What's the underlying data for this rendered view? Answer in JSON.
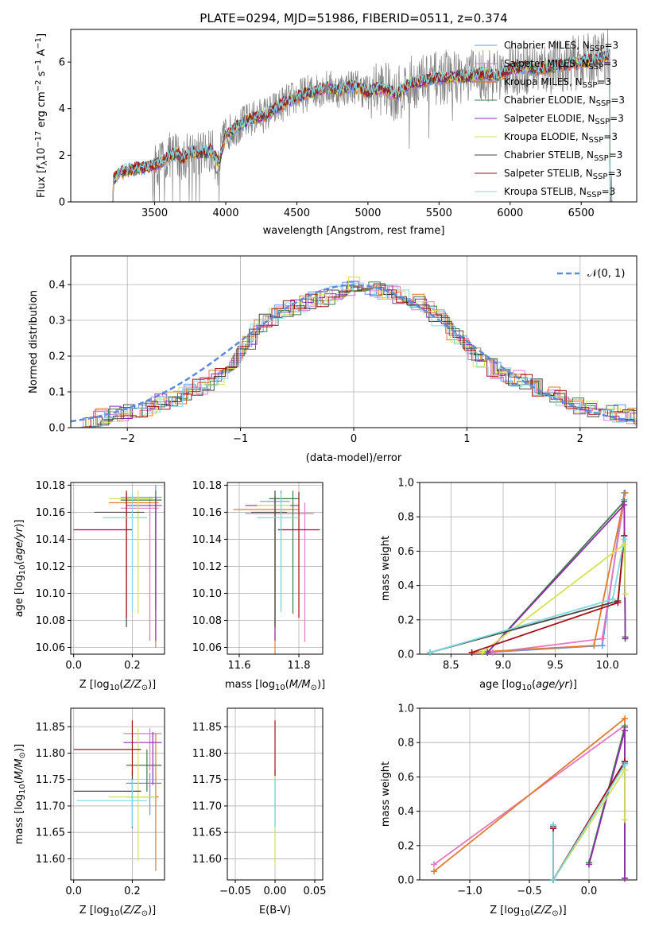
{
  "chart_data": [
    {
      "id": "spectrum",
      "type": "line",
      "title": "PLATE=0294, MJD=51986, FIBERID=0511, z=0.374",
      "xlabel": "wavelength [Angstrom, rest frame]",
      "ylabel": "Flux [f$_\\lambda$10$^{-17}$ erg cm$^{-2}$ s$^{-1}$ A$^{-1}$]",
      "ylabel_parts": {
        "pre": "Flux [",
        "f": "f",
        "lam": "λ",
        "ten": "10",
        "e1": "−17",
        "erg": " erg cm",
        "e2": "−2",
        "s": " s",
        "e3": "−1",
        "A": " A",
        "e4": "−1",
        "post": "]"
      },
      "xlim": [
        2910,
        6890
      ],
      "ylim": [
        0,
        7.4
      ],
      "xticks": [
        3500,
        4000,
        4500,
        5000,
        5500,
        6000,
        6500
      ],
      "yticks": [
        0,
        2,
        4,
        6
      ],
      "grid": false,
      "legend_position": "right",
      "data_series": {
        "name": "data",
        "color": "#808080"
      },
      "model_continuum": {
        "x": [
          3200,
          3250,
          3300,
          3350,
          3400,
          3450,
          3500,
          3550,
          3600,
          3650,
          3700,
          3750,
          3800,
          3850,
          3900,
          3950,
          4000,
          4100,
          4200,
          4300,
          4400,
          4500,
          4600,
          4700,
          4800,
          4900,
          5000,
          5100,
          5200,
          5300,
          5400,
          5500,
          5600,
          5700,
          5800,
          5900,
          6000,
          6100,
          6200,
          6300,
          6400,
          6500,
          6600,
          6700
        ],
        "y": [
          0.9,
          1.25,
          1.35,
          1.4,
          1.45,
          1.5,
          1.55,
          1.75,
          2.0,
          2.1,
          1.8,
          2.2,
          2.1,
          2.1,
          2.2,
          1.6,
          2.9,
          3.3,
          3.6,
          3.8,
          4.2,
          4.5,
          4.7,
          4.9,
          4.8,
          5.0,
          4.7,
          4.9,
          4.6,
          5.1,
          5.2,
          5.3,
          5.4,
          5.35,
          5.5,
          5.4,
          5.7,
          5.8,
          5.7,
          5.8,
          5.9,
          6.0,
          6.1,
          6.3
        ]
      },
      "series": [
        {
          "name": "Chabrier MILES, N$_{SSP}$=3",
          "label": "Chabrier MILES, N",
          "sub": "SSP",
          "tail": "=3",
          "color": "#6495ed",
          "lw": 1
        },
        {
          "name": "Salpeter MILES, N$_{SSP}$=3",
          "label": "Salpeter MILES, N",
          "sub": "SSP",
          "tail": "=3",
          "color": "#e377c2",
          "lw": 1
        },
        {
          "name": "Kroupa MILES, N$_{SSP}$=3",
          "label": "Kroupa MILES, N",
          "sub": "SSP",
          "tail": "=3",
          "color": "#e07b30",
          "lw": 1.5
        },
        {
          "name": "Chabrier ELODIE, N$_{SSP}$=3",
          "label": "Chabrier ELODIE, N",
          "sub": "SSP",
          "tail": "=3",
          "color": "#3a7d44",
          "lw": 1
        },
        {
          "name": "Salpeter ELODIE, N$_{SSP}$=3",
          "label": "Salpeter ELODIE, N",
          "sub": "SSP",
          "tail": "=3",
          "color": "#8e2fa8",
          "lw": 1
        },
        {
          "name": "Kroupa ELODIE, N$_{SSP}$=3",
          "label": "Kroupa ELODIE, N",
          "sub": "SSP",
          "tail": "=3",
          "color": "#d4e157",
          "lw": 1
        },
        {
          "name": "Chabrier STELIB, N$_{SSP}$=3",
          "label": "Chabrier STELIB, N",
          "sub": "SSP",
          "tail": "=3",
          "color": "#444444",
          "lw": 1
        },
        {
          "name": "Salpeter STELIB, N$_{SSP}$=3",
          "label": "Salpeter STELIB, N",
          "sub": "SSP",
          "tail": "=3",
          "color": "#a50f15",
          "lw": 1
        },
        {
          "name": "Kroupa STELIB, N$_{SSP}$=3",
          "label": "Kroupa STELIB, N",
          "sub": "SSP",
          "tail": "=3",
          "color": "#7fd8e0",
          "lw": 1
        }
      ]
    },
    {
      "id": "residuals",
      "type": "line",
      "xlabel": "(data-model)/error",
      "ylabel": "Normed distribution",
      "xlim": [
        -2.5,
        2.5
      ],
      "ylim": [
        0,
        0.48
      ],
      "xticks": [
        -2,
        -1,
        0,
        1,
        2
      ],
      "yticks": [
        0.0,
        0.1,
        0.2,
        0.3,
        0.4
      ],
      "grid": true,
      "legend_position": "top-right",
      "legend_label": "𝒩(0, 1)",
      "gaussian": {
        "mu": 0,
        "sigma": 1,
        "color": "#5b8bd9"
      },
      "hist_bin_width": 0.1,
      "hist_shape": {
        "x": [
          -2.5,
          -2.0,
          -1.5,
          -1.2,
          -1.0,
          -0.8,
          -0.6,
          -0.4,
          -0.2,
          0.0,
          0.2,
          0.4,
          0.6,
          0.8,
          1.0,
          1.2,
          1.5,
          2.0,
          2.5
        ],
        "y": [
          0.02,
          0.04,
          0.09,
          0.14,
          0.21,
          0.29,
          0.33,
          0.35,
          0.37,
          0.4,
          0.39,
          0.37,
          0.35,
          0.29,
          0.22,
          0.17,
          0.13,
          0.06,
          0.03
        ]
      }
    },
    {
      "id": "age_vs_Z",
      "type": "scatter",
      "xlabel": "Z [log$_{10}$(Z/Z$_\\odot$)]",
      "ylabel": "age  [log$_{10}$(age/yr)]",
      "xlim": [
        -0.01,
        0.31
      ],
      "ylim": [
        10.055,
        10.182
      ],
      "xticks": [
        0.0,
        0.2
      ],
      "yticks": [
        10.06,
        10.08,
        10.1,
        10.12,
        10.14,
        10.16,
        10.18
      ],
      "grid": true,
      "points": [
        {
          "s": 0,
          "x": 0.28,
          "y": 10.171,
          "xerr": [
            0.12,
            0.02
          ],
          "yerr": [
            0.08,
            0.009
          ]
        },
        {
          "s": 1,
          "x": 0.26,
          "y": 10.163,
          "xerr": [
            0.1,
            0.03
          ],
          "yerr": [
            0.098,
            0.008
          ]
        },
        {
          "s": 2,
          "x": 0.28,
          "y": 10.167,
          "xerr": [
            0.16,
            0.01
          ],
          "yerr": [
            0.107,
            0.005
          ]
        },
        {
          "s": 3,
          "x": 0.28,
          "y": 10.169,
          "xerr": [
            0.12,
            0.02
          ],
          "yerr": [
            0.082,
            0.007
          ]
        },
        {
          "s": 4,
          "x": 0.28,
          "y": 10.165,
          "xerr": [
            0.1,
            0.02
          ],
          "yerr": [
            0.1,
            0.006
          ]
        },
        {
          "s": 5,
          "x": 0.22,
          "y": 10.17,
          "xerr": [
            0.1,
            0.05
          ],
          "yerr": [
            0.085,
            0.006
          ]
        },
        {
          "s": 6,
          "x": 0.18,
          "y": 10.16,
          "xerr": [
            0.11,
            0.06
          ],
          "yerr": [
            0.085,
            0.016
          ]
        },
        {
          "s": 7,
          "x": 0.18,
          "y": 10.147,
          "xerr": [
            0.18,
            0.02
          ],
          "yerr": [
            0.065,
            0.028
          ]
        },
        {
          "s": 8,
          "x": 0.2,
          "y": 10.156,
          "xerr": [
            0.1,
            0.05
          ],
          "yerr": [
            0.07,
            0.018
          ]
        }
      ]
    },
    {
      "id": "age_vs_mass",
      "type": "scatter",
      "xlabel": "mass [log$_{10}$(M/M$_\\odot$)]",
      "ylabel": "",
      "xlim": [
        11.56,
        11.88
      ],
      "ylim": [
        10.055,
        10.182
      ],
      "xticks": [
        11.6,
        11.8
      ],
      "yticks": [
        10.06,
        10.08,
        10.1,
        10.12,
        10.14,
        10.16,
        10.18
      ],
      "grid": true,
      "points": [
        {
          "s": 0,
          "x": 11.74,
          "y": 10.168,
          "xerr": [
            0.07,
            0.03
          ],
          "yerr": [
            0.08,
            0.008
          ]
        },
        {
          "s": 1,
          "x": 11.82,
          "y": 10.159,
          "xerr": [
            0.2,
            0.03
          ],
          "yerr": [
            0.095,
            0.008
          ]
        },
        {
          "s": 2,
          "x": 11.72,
          "y": 10.162,
          "xerr": [
            0.14,
            0.08
          ],
          "yerr": [
            0.108,
            0.01
          ]
        },
        {
          "s": 3,
          "x": 11.78,
          "y": 10.17,
          "xerr": [
            0.08,
            0.02
          ],
          "yerr": [
            0.085,
            0.006
          ]
        },
        {
          "s": 4,
          "x": 11.72,
          "y": 10.165,
          "xerr": [
            0.1,
            0.08
          ],
          "yerr": [
            0.1,
            0.006
          ]
        },
        {
          "s": 5,
          "x": 11.72,
          "y": 10.165,
          "xerr": [
            0.06,
            0.05
          ],
          "yerr": [
            0.09,
            0.005
          ]
        },
        {
          "s": 6,
          "x": 11.72,
          "y": 10.16,
          "xerr": [
            0.08,
            0.04
          ],
          "yerr": [
            0.085,
            0.016
          ]
        },
        {
          "s": 7,
          "x": 11.8,
          "y": 10.147,
          "xerr": [
            0.07,
            0.07
          ],
          "yerr": [
            0.065,
            0.028
          ]
        },
        {
          "s": 8,
          "x": 11.74,
          "y": 10.156,
          "xerr": [
            0.08,
            0.06
          ],
          "yerr": [
            0.07,
            0.018
          ]
        }
      ]
    },
    {
      "id": "weight_vs_age",
      "type": "line",
      "xlabel": "age  [log$_{10}$(age/yr)]",
      "ylabel": "mass weight",
      "xlim": [
        8.2,
        10.28
      ],
      "ylim": [
        0,
        1.0
      ],
      "xticks": [
        8.5,
        9.0,
        9.5,
        10.0
      ],
      "yticks": [
        0.0,
        0.2,
        0.4,
        0.6,
        0.8,
        1.0
      ],
      "grid": true,
      "lines": [
        {
          "s": 0,
          "x": [
            8.85,
            9.95,
            10.16
          ],
          "y": [
            0.01,
            0.05,
            0.94
          ]
        },
        {
          "s": 1,
          "x": [
            8.9,
            9.95,
            10.16
          ],
          "y": [
            0.01,
            0.09,
            0.9
          ]
        },
        {
          "s": 2,
          "x": [
            8.7,
            9.87,
            10.17
          ],
          "y": [
            0.01,
            0.05,
            0.94
          ]
        },
        {
          "s": 3,
          "x": [
            8.85,
            10.16,
            10.17
          ],
          "y": [
            0.01,
            0.89,
            0.1
          ]
        },
        {
          "s": 4,
          "x": [
            8.85,
            10.16,
            10.17
          ],
          "y": [
            0.01,
            0.87,
            0.09
          ]
        },
        {
          "s": 5,
          "x": [
            8.8,
            10.16,
            10.17
          ],
          "y": [
            0.01,
            0.64,
            0.35
          ]
        },
        {
          "s": 6,
          "x": [
            8.3,
            10.1,
            10.16
          ],
          "y": [
            0.01,
            0.31,
            0.69
          ]
        },
        {
          "s": 7,
          "x": [
            8.7,
            10.1,
            10.16
          ],
          "y": [
            0.01,
            0.3,
            0.69
          ]
        },
        {
          "s": 8,
          "x": [
            8.3,
            10.05,
            10.16
          ],
          "y": [
            0.01,
            0.32,
            0.67
          ]
        }
      ]
    },
    {
      "id": "mass_vs_Z",
      "type": "scatter",
      "xlabel": "Z [log$_{10}$(Z/Z$_\\odot$)]",
      "ylabel": "mass [log$_{10}$(M/M$_\\odot$)]",
      "xlim": [
        -0.01,
        0.31
      ],
      "ylim": [
        11.56,
        11.885
      ],
      "xticks": [
        0.0,
        0.2
      ],
      "yticks": [
        11.6,
        11.65,
        11.7,
        11.75,
        11.8,
        11.85
      ],
      "grid": true,
      "points": [
        {
          "s": 0,
          "x": 0.26,
          "y": 11.743,
          "xerr": [
            0.08,
            0.04
          ],
          "yerr": [
            0.06,
            0.02
          ]
        },
        {
          "s": 1,
          "x": 0.26,
          "y": 11.837,
          "xerr": [
            0.09,
            0.04
          ],
          "yerr": [
            0.07,
            0.01
          ]
        },
        {
          "s": 2,
          "x": 0.28,
          "y": 11.717,
          "xerr": [
            0.1,
            0.01
          ],
          "yerr": [
            0.14,
            0.12
          ]
        },
        {
          "s": 3,
          "x": 0.25,
          "y": 11.777,
          "xerr": [
            0.07,
            0.05
          ],
          "yerr": [
            0.05,
            0.03
          ]
        },
        {
          "s": 4,
          "x": 0.27,
          "y": 11.82,
          "xerr": [
            0.1,
            0.03
          ],
          "yerr": [
            0.08,
            0.02
          ]
        },
        {
          "s": 5,
          "x": 0.22,
          "y": 11.717,
          "xerr": [
            0.1,
            0.06
          ],
          "yerr": [
            0.12,
            0.13
          ]
        },
        {
          "s": 6,
          "x": 0.2,
          "y": 11.728,
          "xerr": [
            0.2,
            0.03
          ],
          "yerr": [
            0.07,
            0.04
          ]
        },
        {
          "s": 7,
          "x": 0.2,
          "y": 11.807,
          "xerr": [
            0.2,
            0.03
          ],
          "yerr": [
            0.05,
            0.055
          ]
        },
        {
          "s": 8,
          "x": 0.2,
          "y": 11.71,
          "xerr": [
            0.19,
            0.05
          ],
          "yerr": [
            0.05,
            0.04
          ]
        }
      ]
    },
    {
      "id": "mass_vs_ebv",
      "type": "scatter",
      "xlabel": "E(B-V)",
      "ylabel": "",
      "xlim": [
        -0.06,
        0.06
      ],
      "ylim": [
        11.56,
        11.885
      ],
      "xticks": [
        -0.05,
        0.0,
        0.05
      ],
      "xticklabels": [
        "−0.05",
        "0.00",
        "0.05"
      ],
      "yticks": [
        11.6,
        11.65,
        11.7,
        11.75,
        11.8,
        11.85
      ],
      "grid": true,
      "points": [
        {
          "s": 0,
          "x": 0,
          "y": 11.74,
          "xerr": [
            0,
            0
          ],
          "yerr": [
            0.08,
            0.03
          ]
        },
        {
          "s": 7,
          "x": 0,
          "y": 11.807,
          "xerr": [
            0,
            0
          ],
          "yerr": [
            0.05,
            0.055
          ]
        },
        {
          "s": 5,
          "x": 0,
          "y": 11.717,
          "xerr": [
            0,
            0
          ],
          "yerr": [
            0.13,
            0.04
          ]
        },
        {
          "s": 8,
          "x": 0,
          "y": 11.71,
          "xerr": [
            0,
            0
          ],
          "yerr": [
            0.05,
            0.04
          ]
        }
      ]
    },
    {
      "id": "weight_vs_Z",
      "type": "line",
      "xlabel": "Z [log$_{10}$(Z/Z$_\\odot$)]",
      "ylabel": "mass weight",
      "xlim": [
        -1.42,
        0.4
      ],
      "ylim": [
        0,
        1.0
      ],
      "xticks": [
        -1.0,
        -0.5,
        0.0
      ],
      "xticklabels": [
        "−1.0",
        "−0.5",
        "0.0"
      ],
      "yticks": [
        0.0,
        0.2,
        0.4,
        0.6,
        0.8,
        1.0
      ],
      "grid": true,
      "lines": [
        {
          "s": 0,
          "x": [
            -0.3,
            -0.3,
            0.3
          ],
          "y": [
            0.32,
            0.0,
            0.68
          ]
        },
        {
          "s": 1,
          "x": [
            -1.3,
            0.3,
            0.3
          ],
          "y": [
            0.09,
            0.9,
            0.01
          ]
        },
        {
          "s": 2,
          "x": [
            -1.3,
            0.3,
            0.3
          ],
          "y": [
            0.05,
            0.94,
            0.01
          ]
        },
        {
          "s": 3,
          "x": [
            0.0,
            0.3,
            0.3
          ],
          "y": [
            0.1,
            0.89,
            0.01
          ]
        },
        {
          "s": 4,
          "x": [
            0.0,
            0.3,
            0.3
          ],
          "y": [
            0.09,
            0.87,
            0.01
          ]
        },
        {
          "s": 5,
          "x": [
            -0.3,
            0.3,
            0.3
          ],
          "y": [
            0.0,
            0.64,
            0.35
          ]
        },
        {
          "s": 6,
          "x": [
            -0.3,
            -0.3,
            0.3
          ],
          "y": [
            0.31,
            0.0,
            0.69
          ]
        },
        {
          "s": 7,
          "x": [
            -0.3,
            -0.3,
            0.3
          ],
          "y": [
            0.3,
            0.0,
            0.69
          ]
        },
        {
          "s": 8,
          "x": [
            -0.3,
            -0.3,
            0.3
          ],
          "y": [
            0.32,
            0.0,
            0.67
          ]
        }
      ]
    }
  ]
}
